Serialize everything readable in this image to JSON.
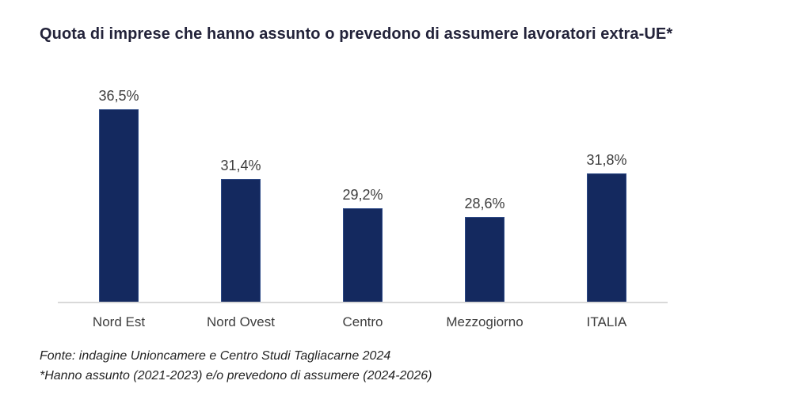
{
  "page": {
    "title": "Quota di imprese che hanno assunto o prevedono di assumere lavoratori extra-UE*"
  },
  "chart_data": {
    "type": "bar",
    "title": "Quota di imprese che hanno assunto o prevedono di assumere lavoratori extra-UE*",
    "categories": [
      "Nord Est",
      "Nord Ovest",
      "Centro",
      "Mezzogiorno",
      "ITALIA"
    ],
    "values": [
      36.5,
      31.4,
      29.2,
      28.6,
      31.8
    ],
    "value_labels": [
      "36,5%",
      "31,4%",
      "29,2%",
      "28,6%",
      "31,8%"
    ],
    "xlabel": "",
    "ylabel": "",
    "ylim": [
      22.3,
      38
    ],
    "grid": false,
    "legend": false,
    "bar_color": "#14295f",
    "axis_line_color": "#d9d9d9",
    "value_label_color": "#3d3d3d",
    "category_label_color": "#3d3d3d"
  },
  "footer": {
    "source_line": "Fonte: indagine Unioncamere e Centro Studi Tagliacarne 2024",
    "note_line": "*Hanno assunto (2021-2023) e/o prevedono di assumere (2024-2026)"
  }
}
